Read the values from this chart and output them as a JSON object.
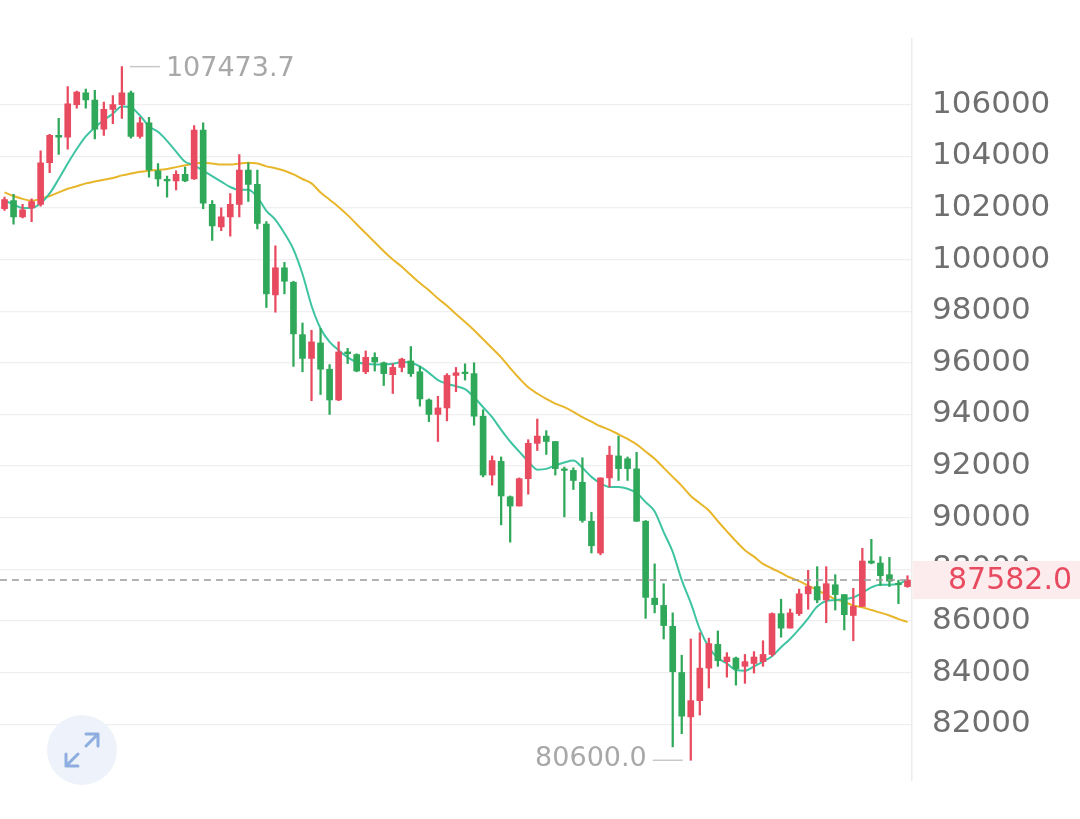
{
  "chart_data": {
    "type": "candlestick",
    "categories": [
      null,
      null,
      null,
      null,
      null,
      null,
      null,
      null,
      null,
      null,
      null,
      null,
      null,
      null,
      null,
      null,
      null,
      null,
      null,
      null,
      null,
      null,
      null,
      null,
      null,
      null,
      null,
      null,
      null,
      null,
      null,
      null,
      null,
      null,
      null,
      null,
      null,
      null,
      null,
      null,
      null,
      null,
      null,
      null,
      null,
      null,
      null,
      null,
      null,
      null,
      null,
      null,
      null,
      null,
      null,
      null,
      null,
      null,
      null,
      null,
      null,
      null,
      null,
      null,
      null,
      null,
      null,
      null,
      null,
      null,
      null,
      null,
      null,
      null,
      null,
      null,
      null,
      null,
      null,
      null,
      null,
      null,
      null,
      null,
      null,
      null,
      null,
      null,
      null,
      null,
      null,
      null,
      null,
      null,
      null,
      null,
      null,
      null,
      null,
      null,
      null
    ],
    "ohlc": [
      [
        101970,
        102420,
        101900,
        102320
      ],
      [
        102280,
        102530,
        101370,
        101650
      ],
      [
        101650,
        102140,
        101610,
        101930
      ],
      [
        102000,
        102350,
        101470,
        102250
      ],
      [
        102140,
        104210,
        102070,
        103750
      ],
      [
        103750,
        104850,
        103370,
        104810
      ],
      [
        104810,
        105470,
        104070,
        104740
      ],
      [
        104740,
        106700,
        104280,
        106030
      ],
      [
        106000,
        106530,
        105860,
        106490
      ],
      [
        106460,
        106600,
        105860,
        106180
      ],
      [
        106180,
        106560,
        104670,
        105050
      ],
      [
        105050,
        106100,
        104810,
        105820
      ],
      [
        105820,
        106350,
        105260,
        106000
      ],
      [
        106000,
        107473.7,
        105470,
        106460
      ],
      [
        106460,
        106530,
        104700,
        104770
      ],
      [
        104770,
        105510,
        104700,
        105300
      ],
      [
        105300,
        105510,
        103190,
        103470
      ],
      [
        103440,
        103720,
        102840,
        103120
      ],
      [
        103100,
        103230,
        102420,
        103050
      ],
      [
        103050,
        103440,
        102700,
        103300
      ],
      [
        103300,
        103580,
        103020,
        103050
      ],
      [
        103120,
        105190,
        103100,
        105020
      ],
      [
        105020,
        105300,
        101970,
        102180
      ],
      [
        102140,
        102280,
        100740,
        101300
      ],
      [
        101260,
        102000,
        101120,
        101650
      ],
      [
        101650,
        102560,
        100910,
        102140
      ],
      [
        102140,
        104070,
        101650,
        103470
      ],
      [
        103470,
        103750,
        102250,
        102910
      ],
      [
        102910,
        103470,
        101190,
        101400
      ],
      [
        101370,
        101470,
        98140,
        98670
      ],
      [
        98630,
        100530,
        97960,
        99680
      ],
      [
        99680,
        99890,
        98670,
        99160
      ],
      [
        99120,
        99160,
        95860,
        97120
      ],
      [
        97090,
        97540,
        95650,
        96170
      ],
      [
        96170,
        97260,
        94530,
        96810
      ],
      [
        96770,
        97330,
        94770,
        95750
      ],
      [
        95750,
        95930,
        94000,
        94560
      ],
      [
        94560,
        96810,
        94530,
        96420
      ],
      [
        96420,
        96560,
        95970,
        96350
      ],
      [
        96320,
        96350,
        95650,
        95680
      ],
      [
        95650,
        96460,
        95580,
        96210
      ],
      [
        96210,
        96390,
        95680,
        96030
      ],
      [
        96000,
        96030,
        95120,
        95580
      ],
      [
        95540,
        95960,
        94810,
        95820
      ],
      [
        95820,
        96180,
        95650,
        96140
      ],
      [
        96070,
        96630,
        95470,
        95580
      ],
      [
        95650,
        95860,
        94320,
        94600
      ],
      [
        94560,
        94600,
        93720,
        94000
      ],
      [
        94000,
        94700,
        92950,
        94250
      ],
      [
        94250,
        95580,
        93750,
        95510
      ],
      [
        95510,
        95820,
        94880,
        95610
      ],
      [
        95610,
        95960,
        95330,
        95580
      ],
      [
        95580,
        96000,
        93580,
        93930
      ],
      [
        93930,
        94180,
        91580,
        91650
      ],
      [
        91650,
        92390,
        91260,
        92210
      ],
      [
        92180,
        92350,
        89720,
        90840
      ],
      [
        90810,
        90840,
        89050,
        90450
      ],
      [
        90450,
        91540,
        90450,
        91510
      ],
      [
        91510,
        93020,
        90910,
        92880
      ],
      [
        92880,
        93820,
        92600,
        93160
      ],
      [
        93160,
        93370,
        92450,
        92950
      ],
      [
        92950,
        92950,
        91650,
        91900
      ],
      [
        91860,
        91960,
        90030,
        91830
      ],
      [
        91830,
        91930,
        91090,
        91440
      ],
      [
        91370,
        92320,
        89820,
        89890
      ],
      [
        89860,
        90210,
        88630,
        88910
      ],
      [
        88630,
        91540,
        88560,
        91540
      ],
      [
        91540,
        92770,
        91190,
        92420
      ],
      [
        92390,
        93160,
        91440,
        91900
      ],
      [
        92280,
        92350,
        91440,
        91900
      ],
      [
        91890,
        92530,
        89860,
        89860
      ],
      [
        89860,
        89890,
        86100,
        86910
      ],
      [
        86880,
        88210,
        86310,
        86630
      ],
      [
        86600,
        87440,
        85300,
        85820
      ],
      [
        85790,
        86310,
        81120,
        84030
      ],
      [
        84000,
        84670,
        81630,
        82310
      ],
      [
        82280,
        85300,
        80600,
        82910
      ],
      [
        82910,
        85540,
        82350,
        84170
      ],
      [
        84170,
        85330,
        83400,
        85120
      ],
      [
        85090,
        85610,
        84240,
        84460
      ],
      [
        84420,
        84770,
        83820,
        84600
      ],
      [
        84560,
        84600,
        83510,
        84140
      ],
      [
        84240,
        84700,
        83580,
        84420
      ],
      [
        84350,
        84810,
        83980,
        84600
      ],
      [
        84420,
        85230,
        84240,
        84700
      ],
      [
        84700,
        86310,
        84630,
        86280
      ],
      [
        86280,
        86840,
        85370,
        85720
      ],
      [
        85720,
        86460,
        85720,
        86310
      ],
      [
        86280,
        87230,
        86210,
        87050
      ],
      [
        87050,
        87960,
        86450,
        87330
      ],
      [
        87330,
        88100,
        86700,
        86810
      ],
      [
        86810,
        88100,
        85930,
        87440
      ],
      [
        87400,
        87790,
        86420,
        87020
      ],
      [
        87020,
        87020,
        85650,
        86240
      ],
      [
        86210,
        87260,
        85230,
        86560
      ],
      [
        86560,
        88810,
        86560,
        88320
      ],
      [
        88320,
        89160,
        88210,
        88240
      ],
      [
        88240,
        88490,
        87370,
        87750
      ],
      [
        87790,
        88460,
        87330,
        87540
      ],
      [
        87440,
        87580,
        86670,
        87400
      ],
      [
        87330,
        87750,
        87300,
        87582.0
      ]
    ],
    "colors": [
      "#e84a5f",
      "#2fa85a",
      "#e84a5f",
      "#e84a5f",
      "#e84a5f",
      "#e84a5f",
      "#2fa85a",
      "#e84a5f",
      "#e84a5f",
      "#2fa85a",
      "#2fa85a",
      "#e84a5f",
      "#e84a5f",
      "#e84a5f",
      "#2fa85a",
      "#e84a5f",
      "#2fa85a",
      "#2fa85a",
      "#2fa85a",
      "#e84a5f",
      "#2fa85a",
      "#e84a5f",
      "#2fa85a",
      "#2fa85a",
      "#e84a5f",
      "#e84a5f",
      "#e84a5f",
      "#2fa85a",
      "#2fa85a",
      "#2fa85a",
      "#e84a5f",
      "#2fa85a",
      "#2fa85a",
      "#2fa85a",
      "#e84a5f",
      "#2fa85a",
      "#2fa85a",
      "#e84a5f",
      "#2fa85a",
      "#2fa85a",
      "#e84a5f",
      "#2fa85a",
      "#2fa85a",
      "#e84a5f",
      "#e84a5f",
      "#2fa85a",
      "#2fa85a",
      "#2fa85a",
      "#e84a5f",
      "#e84a5f",
      "#e84a5f",
      "#2fa85a",
      "#2fa85a",
      "#2fa85a",
      "#e84a5f",
      "#2fa85a",
      "#2fa85a",
      "#e84a5f",
      "#e84a5f",
      "#e84a5f",
      "#2fa85a",
      "#2fa85a",
      "#2fa85a",
      "#2fa85a",
      "#2fa85a",
      "#2fa85a",
      "#e84a5f",
      "#e84a5f",
      "#2fa85a",
      "#2fa85a",
      "#2fa85a",
      "#2fa85a",
      "#2fa85a",
      "#2fa85a",
      "#2fa85a",
      "#2fa85a",
      "#e84a5f",
      "#e84a5f",
      "#e84a5f",
      "#2fa85a",
      "#e84a5f",
      "#2fa85a",
      "#e84a5f",
      "#e84a5f",
      "#e84a5f",
      "#e84a5f",
      "#2fa85a",
      "#e84a5f",
      "#e84a5f",
      "#e84a5f",
      "#2fa85a",
      "#e84a5f",
      "#2fa85a",
      "#2fa85a",
      "#e84a5f",
      "#e84a5f",
      "#2fa85a",
      "#2fa85a",
      "#2fa85a",
      "#2fa85a",
      "#e84a5f"
    ],
    "series": [
      {
        "type": "line",
        "color": "#3fc4a2",
        "values": [
          102280,
          102140,
          102000,
          102000,
          102180,
          102560,
          103120,
          103720,
          104280,
          104770,
          105120,
          105400,
          105650,
          105930,
          105890,
          105580,
          105160,
          104950,
          104600,
          104180,
          103790,
          103650,
          103440,
          103230,
          103020,
          102810,
          102700,
          102700,
          102420,
          101890,
          101540,
          101020,
          100390,
          99440,
          98210,
          97330,
          96810,
          96490,
          96210,
          96030,
          95960,
          95930,
          95930,
          95960,
          96030,
          96000,
          95860,
          95610,
          95330,
          95190,
          95090,
          94980,
          94670,
          94280,
          93890,
          93400,
          92950,
          92560,
          92180,
          91860,
          91890,
          92030,
          92140,
          92210,
          91930,
          91580,
          91330,
          91190,
          91190,
          91120,
          90950,
          90600,
          90240,
          89440,
          88670,
          87580,
          86700,
          85680,
          84980,
          84560,
          84350,
          84100,
          84070,
          84240,
          84420,
          84630,
          84980,
          85300,
          85680,
          86100,
          86560,
          86770,
          86810,
          86840,
          86910,
          87090,
          87300,
          87400,
          87400,
          87440,
          87580
        ]
      },
      {
        "type": "line",
        "color": "#e8b62a",
        "values": [
          102600,
          102460,
          102350,
          102280,
          102350,
          102460,
          102600,
          102740,
          102840,
          102950,
          103020,
          103090,
          103160,
          103260,
          103330,
          103400,
          103440,
          103470,
          103510,
          103580,
          103650,
          103720,
          103750,
          103720,
          103680,
          103680,
          103720,
          103750,
          103720,
          103610,
          103540,
          103440,
          103300,
          103120,
          102950,
          102600,
          102320,
          102040,
          101720,
          101370,
          101020,
          100670,
          100320,
          100000,
          99720,
          99400,
          99090,
          98810,
          98490,
          98210,
          97890,
          97580,
          97260,
          96910,
          96560,
          96210,
          95790,
          95400,
          95050,
          94810,
          94600,
          94420,
          94280,
          94100,
          93890,
          93720,
          93540,
          93400,
          93230,
          93050,
          92840,
          92560,
          92280,
          91930,
          91580,
          91230,
          90840,
          90560,
          90280,
          89860,
          89470,
          89090,
          88740,
          88490,
          88210,
          88030,
          87860,
          87680,
          87540,
          87370,
          87190,
          87020,
          86840,
          86740,
          86600,
          86530,
          86420,
          86320,
          86210,
          86070,
          85960
        ]
      }
    ],
    "ylim": [
      79820,
      108560
    ],
    "yticks": [
      82000,
      84000,
      86000,
      88000,
      90000,
      92000,
      94000,
      96000,
      98000,
      100000,
      102000,
      104000,
      106000
    ],
    "grid": "y",
    "marker": "none",
    "legend": false,
    "ref_lines": [
      {
        "axis": "y",
        "value": 87582.0,
        "label": "87582.0",
        "color": "#9a9a9a",
        "line_style": "dashed"
      }
    ],
    "annotations": [
      "107473.7",
      "80600.0"
    ]
  }
}
